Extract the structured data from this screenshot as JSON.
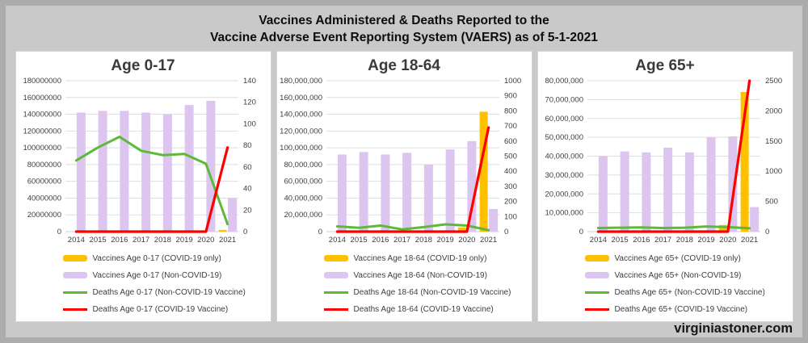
{
  "page": {
    "title_line1": "Vaccines Administered & Deaths Reported to the",
    "title_line2": "Vaccine Adverse Event Reporting System (VAERS) as of 5-1-2021",
    "watermark": "virginiastoner.com"
  },
  "colors": {
    "orange": "#FFC000",
    "purple": "#DCC6F0",
    "green": "#5CBA38",
    "red": "#FF0000",
    "grid": "#DEDEDE",
    "axis_text": "#3D3D3D",
    "baseline": "#CFCFCF"
  },
  "chart_data": [
    {
      "type": "combo_bar_line",
      "title": "Age 0-17",
      "categories": [
        "2014",
        "2015",
        "2016",
        "2017",
        "2018",
        "2019",
        "2020",
        "2021"
      ],
      "grid": true,
      "legend_position": "below",
      "left_axis": {
        "min": 0,
        "max": 180000000,
        "step": 20000000,
        "labels": [
          "0",
          "20000000",
          "40000000",
          "60000000",
          "80000000",
          "100000000",
          "120000000",
          "140000000",
          "160000000",
          "180000000"
        ]
      },
      "right_axis": {
        "min": 0,
        "max": 140,
        "step": 20,
        "labels": [
          "0",
          "20",
          "40",
          "60",
          "80",
          "100",
          "120",
          "140"
        ]
      },
      "series": [
        {
          "name": "Vaccines Age 0-17 (COVID-19 only)",
          "kind": "bar",
          "axis": "left",
          "color_key": "orange",
          "values": [
            0,
            0,
            0,
            0,
            0,
            0,
            0,
            2000000
          ]
        },
        {
          "name": "Vaccines Age 0-17 (Non-COVID-19)",
          "kind": "bar",
          "axis": "left",
          "color_key": "purple",
          "values": [
            142000000,
            144000000,
            144000000,
            142000000,
            140000000,
            151000000,
            156000000,
            40000000
          ]
        },
        {
          "name": "Deaths Age 0-17 (Non-COVID-19 Vaccine)",
          "kind": "line",
          "axis": "right",
          "color_key": "green",
          "values": [
            66,
            78,
            88,
            75,
            71,
            72,
            63,
            7
          ]
        },
        {
          "name": "Deaths Age 0-17 (COVID-19 Vaccine)",
          "kind": "line",
          "axis": "right",
          "color_key": "red",
          "values": [
            0,
            0,
            0,
            0,
            0,
            0,
            0,
            78
          ]
        }
      ]
    },
    {
      "type": "combo_bar_line",
      "title": "Age 18-64",
      "categories": [
        "2014",
        "2015",
        "2016",
        "2017",
        "2018",
        "2019",
        "2020",
        "2021"
      ],
      "grid": true,
      "legend_position": "below",
      "left_axis": {
        "min": 0,
        "max": 180000000,
        "step": 20000000,
        "labels": [
          "0",
          "20,000,000",
          "40,000,000",
          "60,000,000",
          "80,000,000",
          "100,000,000",
          "120,000,000",
          "140,000,000",
          "160,000,000",
          "180,000,000"
        ]
      },
      "right_axis": {
        "min": 0,
        "max": 1000,
        "step": 100,
        "labels": [
          "0",
          "100",
          "200",
          "300",
          "400",
          "500",
          "600",
          "700",
          "800",
          "900",
          "1000"
        ]
      },
      "series": [
        {
          "name": "Vaccines Age 18-64 (COVID-19 only)",
          "kind": "bar",
          "axis": "left",
          "color_key": "orange",
          "values": [
            0,
            0,
            0,
            0,
            0,
            0,
            5000000,
            143000000
          ]
        },
        {
          "name": "Vaccines Age 18-64 (Non-COVID-19)",
          "kind": "bar",
          "axis": "left",
          "color_key": "purple",
          "values": [
            92000000,
            95000000,
            92000000,
            94000000,
            80000000,
            98000000,
            108000000,
            27000000
          ]
        },
        {
          "name": "Deaths Age 18-64 (Non-COVID-19 Vaccine)",
          "kind": "line",
          "axis": "right",
          "color_key": "green",
          "values": [
            35,
            25,
            40,
            15,
            30,
            48,
            40,
            10
          ]
        },
        {
          "name": "Deaths Age 18-64 (COVID-19 Vaccine)",
          "kind": "line",
          "axis": "right",
          "color_key": "red",
          "values": [
            0,
            0,
            0,
            0,
            0,
            0,
            0,
            690
          ]
        }
      ]
    },
    {
      "type": "combo_bar_line",
      "title": "Age 65+",
      "categories": [
        "2014",
        "2015",
        "2016",
        "2017",
        "2018",
        "2019",
        "2020",
        "2021"
      ],
      "grid": true,
      "legend_position": "below",
      "left_axis": {
        "min": 0,
        "max": 80000000,
        "step": 10000000,
        "labels": [
          "0",
          "10,000,000",
          "20,000,000",
          "30,000,000",
          "40,000,000",
          "50,000,000",
          "60,000,000",
          "70,000,000",
          "80,000,000"
        ]
      },
      "right_axis": {
        "min": 0,
        "max": 2500,
        "step": 500,
        "labels": [
          "0",
          "500",
          "1000",
          "1500",
          "2000",
          "2500"
        ]
      },
      "series": [
        {
          "name": "Vaccines Age 65+ (COVID-19 only)",
          "kind": "bar",
          "axis": "left",
          "color_key": "orange",
          "values": [
            0,
            0,
            0,
            0,
            0,
            0,
            3500000,
            74000000
          ]
        },
        {
          "name": "Vaccines Age 65+ (Non-COVID-19)",
          "kind": "bar",
          "axis": "left",
          "color_key": "purple",
          "values": [
            40000000,
            42500000,
            42000000,
            44500000,
            42000000,
            50000000,
            50500000,
            13000000
          ]
        },
        {
          "name": "Deaths Age 65+ (Non-COVID-19 Vaccine)",
          "kind": "line",
          "axis": "right",
          "color_key": "green",
          "values": [
            60,
            65,
            70,
            60,
            65,
            85,
            75,
            55
          ]
        },
        {
          "name": "Deaths Age 65+ (COVID-19 Vaccine)",
          "kind": "line",
          "axis": "right",
          "color_key": "red",
          "values": [
            0,
            0,
            0,
            0,
            0,
            0,
            0,
            2500
          ]
        }
      ]
    }
  ]
}
